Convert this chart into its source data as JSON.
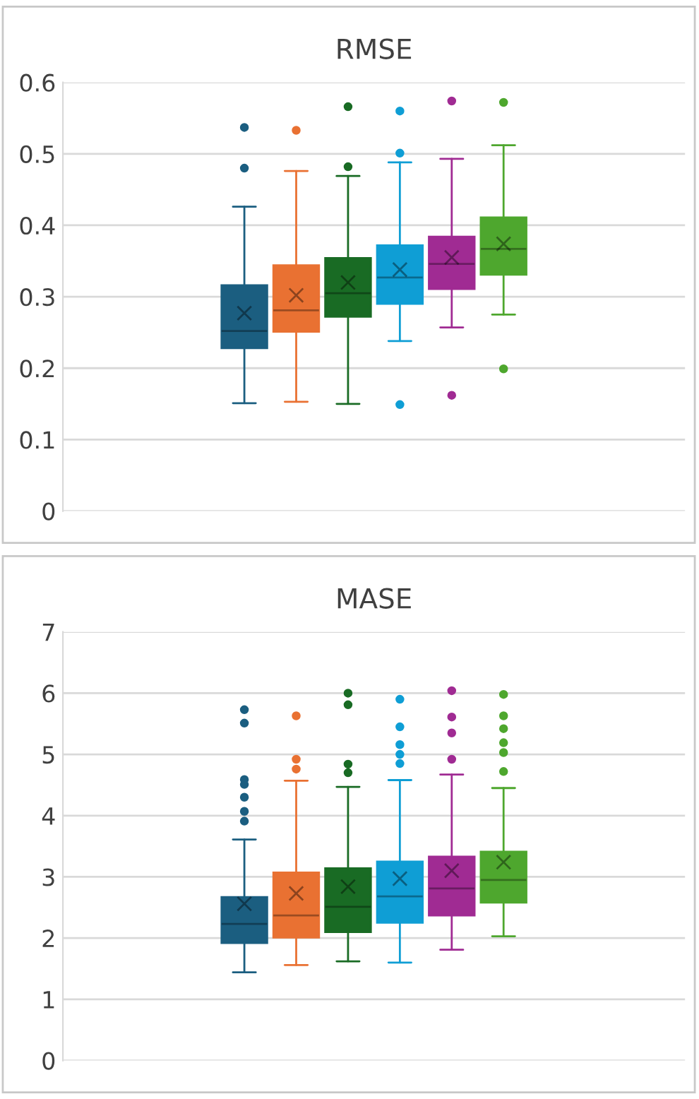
{
  "chart_data": [
    {
      "type": "box",
      "title": "RMSE",
      "categories": [
        null
      ],
      "ylim": [
        0,
        0.6
      ],
      "yticks": [
        {
          "value": 0,
          "label": "0"
        },
        0.1,
        0.2,
        0.3,
        0.4,
        0.5,
        0.6
      ],
      "grid": "y",
      "tick_labels": "y",
      "marker": "circle",
      "series": [
        {
          "color": "#1b5e80",
          "boxes": [
            {
              "low": 0.151,
              "q1": 0.228,
              "median": 0.252,
              "q3": 0.316,
              "high": 0.426,
              "mean": 0.277,
              "outliers": [
                0.48,
                0.537
              ]
            }
          ]
        },
        {
          "color": "#e97132",
          "boxes": [
            {
              "low": 0.153,
              "q1": 0.251,
              "median": 0.281,
              "q3": 0.344,
              "high": 0.476,
              "mean": 0.302,
              "outliers": [
                0.533
              ]
            }
          ]
        },
        {
          "color": "#196b24",
          "boxes": [
            {
              "low": 0.15,
              "q1": 0.272,
              "median": 0.305,
              "q3": 0.354,
              "high": 0.469,
              "mean": 0.32,
              "outliers": [
                0.482,
                0.566
              ]
            }
          ]
        },
        {
          "color": "#0f9ed5",
          "boxes": [
            {
              "low": 0.238,
              "q1": 0.29,
              "median": 0.327,
              "q3": 0.372,
              "high": 0.488,
              "mean": 0.338,
              "outliers": [
                0.149,
                0.501,
                0.56
              ]
            }
          ]
        },
        {
          "color": "#a02b93",
          "boxes": [
            {
              "low": 0.257,
              "q1": 0.311,
              "median": 0.346,
              "q3": 0.384,
              "high": 0.493,
              "mean": 0.355,
              "outliers": [
                0.162,
                0.574
              ]
            }
          ]
        },
        {
          "color": "#4ea72e",
          "boxes": [
            {
              "low": 0.275,
              "q1": 0.331,
              "median": 0.367,
              "q3": 0.411,
              "high": 0.512,
              "mean": 0.374,
              "outliers": [
                0.199,
                0.572
              ]
            }
          ]
        }
      ]
    },
    {
      "type": "box",
      "title": "MASE",
      "categories": [
        null
      ],
      "ylim": [
        0,
        7
      ],
      "yticks": [
        0,
        1,
        2,
        3,
        4,
        5,
        6,
        7
      ],
      "grid": "y",
      "tick_labels": "y",
      "marker": "circle",
      "series": [
        {
          "color": "#1b5e80",
          "boxes": [
            {
              "low": 1.44,
              "q1": 1.92,
              "median": 2.23,
              "q3": 2.67,
              "high": 3.61,
              "mean": 2.56,
              "outliers": [
                3.91,
                4.07,
                4.3,
                4.51,
                4.59,
                5.51,
                5.73
              ]
            }
          ]
        },
        {
          "color": "#e97132",
          "boxes": [
            {
              "low": 1.56,
              "q1": 2.01,
              "median": 2.37,
              "q3": 3.07,
              "high": 4.57,
              "mean": 2.73,
              "outliers": [
                4.76,
                4.92,
                5.63
              ]
            }
          ]
        },
        {
          "color": "#196b24",
          "boxes": [
            {
              "low": 1.62,
              "q1": 2.1,
              "median": 2.51,
              "q3": 3.14,
              "high": 4.47,
              "mean": 2.84,
              "outliers": [
                4.7,
                4.84,
                5.81,
                6.0
              ]
            }
          ]
        },
        {
          "color": "#0f9ed5",
          "boxes": [
            {
              "low": 1.6,
              "q1": 2.25,
              "median": 2.68,
              "q3": 3.25,
              "high": 4.58,
              "mean": 2.97,
              "outliers": [
                4.85,
                5.0,
                5.16,
                5.45,
                5.9
              ]
            }
          ]
        },
        {
          "color": "#a02b93",
          "boxes": [
            {
              "low": 1.81,
              "q1": 2.37,
              "median": 2.81,
              "q3": 3.33,
              "high": 4.67,
              "mean": 3.1,
              "outliers": [
                4.92,
                5.35,
                5.61,
                6.04
              ]
            }
          ]
        },
        {
          "color": "#4ea72e",
          "boxes": [
            {
              "low": 2.03,
              "q1": 2.58,
              "median": 2.95,
              "q3": 3.41,
              "high": 4.45,
              "mean": 3.24,
              "outliers": [
                4.72,
                5.03,
                5.19,
                5.42,
                5.63,
                5.98
              ]
            }
          ]
        }
      ]
    }
  ]
}
